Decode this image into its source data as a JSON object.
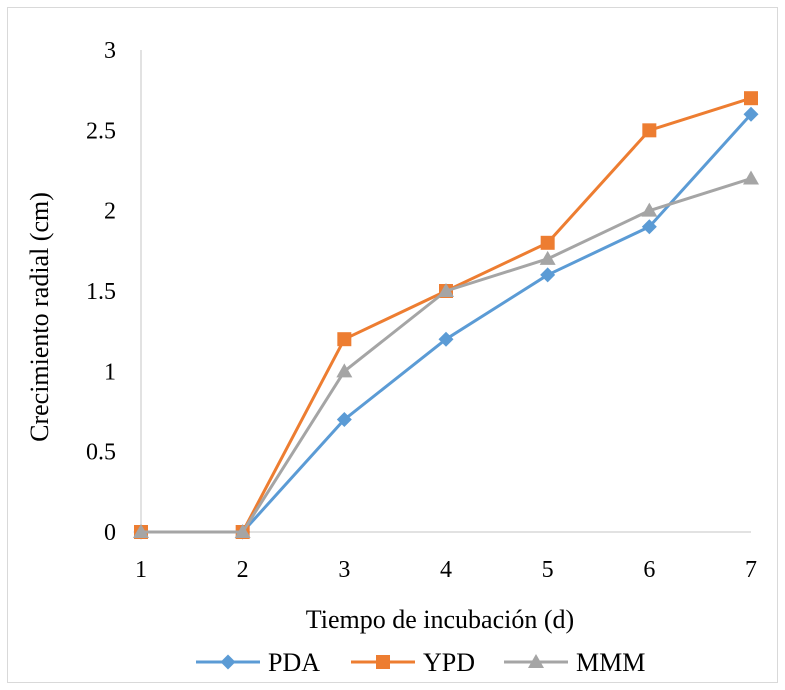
{
  "chart_data": {
    "type": "line",
    "title": "",
    "xlabel": "Tiempo de incubación (d)",
    "ylabel": "Crecimiento radial (cm)",
    "categories": [
      "1",
      "2",
      "3",
      "4",
      "5",
      "6",
      "7"
    ],
    "x": [
      1,
      2,
      3,
      4,
      5,
      6,
      7
    ],
    "xlim": [
      1,
      7
    ],
    "ylim": [
      0,
      3
    ],
    "yticks": [
      "0",
      "0.5",
      "1",
      "1.5",
      "2",
      "2.5",
      "3"
    ],
    "ytick_values": [
      0,
      0.5,
      1,
      1.5,
      2,
      2.5,
      3
    ],
    "grid": false,
    "legend_position": "bottom",
    "series": [
      {
        "name": "PDA",
        "color": "#5b9bd5",
        "marker": "diamond",
        "values": [
          0,
          0,
          0.7,
          1.2,
          1.6,
          1.9,
          2.6
        ]
      },
      {
        "name": "YPD",
        "color": "#ed7d31",
        "marker": "square",
        "values": [
          0,
          0,
          1.2,
          1.5,
          1.8,
          2.5,
          2.7
        ]
      },
      {
        "name": "MMM",
        "color": "#a5a5a5",
        "marker": "triangle",
        "values": [
          0,
          0,
          1.0,
          1.5,
          1.7,
          2.0,
          2.2
        ]
      }
    ]
  }
}
